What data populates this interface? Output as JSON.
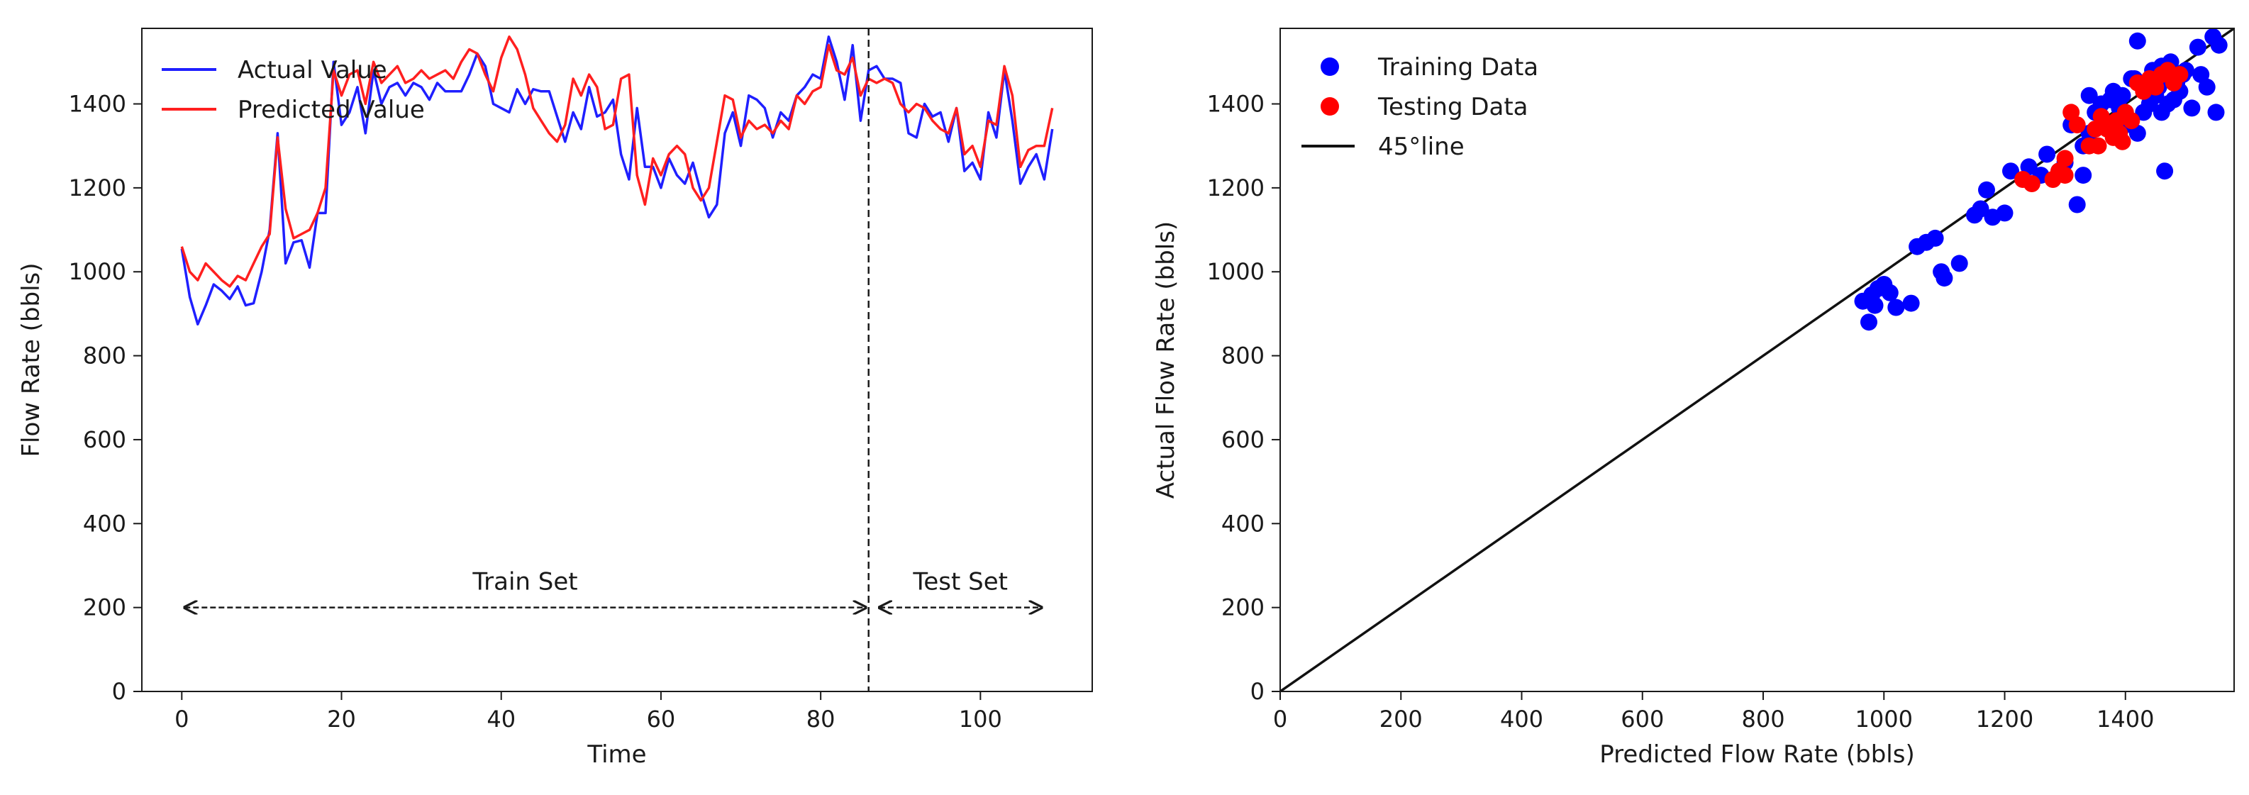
{
  "chart_data": [
    {
      "type": "line",
      "xlabel": "Time",
      "ylabel": "Flow Rate (bbls)",
      "xlim": [
        -5,
        114
      ],
      "ylim": [
        0,
        1580
      ],
      "xticks": [
        0,
        20,
        40,
        60,
        80,
        100
      ],
      "yticks": [
        0,
        200,
        400,
        600,
        800,
        1000,
        1200,
        1400
      ],
      "legend_position": "upper-left",
      "grid": false,
      "split_index": 86,
      "series": [
        {
          "name": "Actual Value",
          "color": "#1f1fff",
          "values": [
            1055,
            940,
            875,
            920,
            970,
            955,
            935,
            965,
            920,
            925,
            1000,
            1100,
            1330,
            1020,
            1070,
            1075,
            1010,
            1140,
            1140,
            1500,
            1350,
            1380,
            1440,
            1330,
            1480,
            1400,
            1440,
            1450,
            1420,
            1450,
            1440,
            1410,
            1450,
            1430,
            1430,
            1430,
            1470,
            1520,
            1490,
            1400,
            1390,
            1380,
            1435,
            1400,
            1435,
            1430,
            1430,
            1370,
            1310,
            1380,
            1340,
            1440,
            1370,
            1380,
            1410,
            1280,
            1220,
            1390,
            1250,
            1250,
            1200,
            1270,
            1230,
            1210,
            1260,
            1190,
            1130,
            1160,
            1330,
            1380,
            1300,
            1420,
            1410,
            1390,
            1320,
            1380,
            1360,
            1420,
            1440,
            1470,
            1460,
            1560,
            1500,
            1410,
            1540,
            1360,
            1480,
            1490,
            1460,
            1460,
            1450,
            1330,
            1320,
            1400,
            1370,
            1380,
            1310,
            1390,
            1240,
            1260,
            1220,
            1380,
            1320,
            1480,
            1360,
            1210,
            1250,
            1280,
            1220,
            1340
          ]
        },
        {
          "name": "Predicted Value",
          "color": "#ff1f1f",
          "values": [
            1060,
            1000,
            980,
            1020,
            1000,
            980,
            965,
            990,
            980,
            1020,
            1060,
            1090,
            1320,
            1150,
            1080,
            1090,
            1100,
            1140,
            1200,
            1480,
            1420,
            1470,
            1480,
            1400,
            1500,
            1450,
            1470,
            1490,
            1450,
            1460,
            1480,
            1460,
            1470,
            1480,
            1460,
            1500,
            1530,
            1520,
            1470,
            1430,
            1510,
            1560,
            1530,
            1470,
            1390,
            1360,
            1330,
            1310,
            1350,
            1460,
            1420,
            1470,
            1440,
            1340,
            1350,
            1460,
            1470,
            1230,
            1160,
            1270,
            1230,
            1280,
            1300,
            1280,
            1200,
            1170,
            1200,
            1310,
            1420,
            1410,
            1320,
            1360,
            1340,
            1350,
            1330,
            1360,
            1340,
            1420,
            1400,
            1430,
            1440,
            1540,
            1480,
            1470,
            1510,
            1420,
            1460,
            1450,
            1460,
            1450,
            1400,
            1380,
            1400,
            1390,
            1360,
            1340,
            1330,
            1390,
            1280,
            1300,
            1250,
            1360,
            1350,
            1490,
            1420,
            1250,
            1290,
            1300,
            1300,
            1390
          ]
        }
      ],
      "annotations": [
        {
          "text": "Train Set",
          "from": 0,
          "to": 86,
          "y": 200
        },
        {
          "text": "Test Set",
          "from": 87,
          "to": 108,
          "y": 200
        }
      ]
    },
    {
      "type": "scatter",
      "xlabel": "Predicted Flow Rate (bbls)",
      "ylabel": "Actual Flow Rate (bbls)",
      "xlim": [
        0,
        1580
      ],
      "ylim": [
        0,
        1580
      ],
      "xticks": [
        0,
        200,
        400,
        600,
        800,
        1000,
        1200,
        1400
      ],
      "yticks": [
        0,
        200,
        400,
        600,
        800,
        1000,
        1200,
        1400
      ],
      "legend_position": "upper-left",
      "grid": false,
      "series": [
        {
          "name": "Training Data",
          "color": "#0000ff",
          "points": [
            [
              965,
              930
            ],
            [
              980,
              945
            ],
            [
              990,
              960
            ],
            [
              975,
              880
            ],
            [
              1000,
              970
            ],
            [
              1010,
              950
            ],
            [
              985,
              920
            ],
            [
              1020,
              915
            ],
            [
              1045,
              925
            ],
            [
              1055,
              1060
            ],
            [
              1070,
              1070
            ],
            [
              1085,
              1080
            ],
            [
              1095,
              1000
            ],
            [
              1100,
              985
            ],
            [
              1125,
              1020
            ],
            [
              1150,
              1135
            ],
            [
              1160,
              1150
            ],
            [
              1170,
              1195
            ],
            [
              1180,
              1130
            ],
            [
              1200,
              1140
            ],
            [
              1210,
              1240
            ],
            [
              1240,
              1250
            ],
            [
              1260,
              1230
            ],
            [
              1270,
              1280
            ],
            [
              1290,
              1240
            ],
            [
              1300,
              1260
            ],
            [
              1310,
              1350
            ],
            [
              1320,
              1160
            ],
            [
              1330,
              1230
            ],
            [
              1330,
              1300
            ],
            [
              1340,
              1420
            ],
            [
              1350,
              1380
            ],
            [
              1360,
              1400
            ],
            [
              1375,
              1410
            ],
            [
              1380,
              1430
            ],
            [
              1390,
              1390
            ],
            [
              1400,
              1350
            ],
            [
              1410,
              1460
            ],
            [
              1420,
              1550
            ],
            [
              1420,
              1330
            ],
            [
              1430,
              1380
            ],
            [
              1440,
              1400
            ],
            [
              1445,
              1480
            ],
            [
              1450,
              1420
            ],
            [
              1455,
              1440
            ],
            [
              1460,
              1490
            ],
            [
              1465,
              1240
            ],
            [
              1470,
              1460
            ],
            [
              1475,
              1500
            ],
            [
              1480,
              1410
            ],
            [
              1485,
              1450
            ],
            [
              1490,
              1430
            ],
            [
              1495,
              1470
            ],
            [
              1500,
              1480
            ],
            [
              1510,
              1390
            ],
            [
              1520,
              1535
            ],
            [
              1525,
              1470
            ],
            [
              1535,
              1440
            ],
            [
              1545,
              1560
            ],
            [
              1550,
              1380
            ],
            [
              1555,
              1540
            ],
            [
              1340,
              1330
            ],
            [
              1360,
              1370
            ],
            [
              1395,
              1420
            ],
            [
              1415,
              1460
            ],
            [
              1435,
              1440
            ],
            [
              1460,
              1380
            ],
            [
              1470,
              1400
            ]
          ]
        },
        {
          "name": "Testing Data",
          "color": "#ff0000",
          "points": [
            [
              1230,
              1220
            ],
            [
              1245,
              1210
            ],
            [
              1280,
              1220
            ],
            [
              1290,
              1240
            ],
            [
              1300,
              1230
            ],
            [
              1300,
              1270
            ],
            [
              1310,
              1380
            ],
            [
              1320,
              1350
            ],
            [
              1340,
              1300
            ],
            [
              1350,
              1340
            ],
            [
              1355,
              1300
            ],
            [
              1360,
              1370
            ],
            [
              1370,
              1340
            ],
            [
              1375,
              1350
            ],
            [
              1380,
              1320
            ],
            [
              1385,
              1360
            ],
            [
              1390,
              1330
            ],
            [
              1395,
              1310
            ],
            [
              1400,
              1380
            ],
            [
              1410,
              1360
            ],
            [
              1420,
              1450
            ],
            [
              1430,
              1430
            ],
            [
              1440,
              1460
            ],
            [
              1450,
              1440
            ],
            [
              1460,
              1470
            ],
            [
              1470,
              1480
            ],
            [
              1480,
              1450
            ],
            [
              1490,
              1470
            ]
          ]
        },
        {
          "name": "45°line",
          "color": "#111111",
          "type": "line",
          "points": [
            [
              0,
              0
            ],
            [
              1580,
              1580
            ]
          ]
        }
      ]
    }
  ]
}
